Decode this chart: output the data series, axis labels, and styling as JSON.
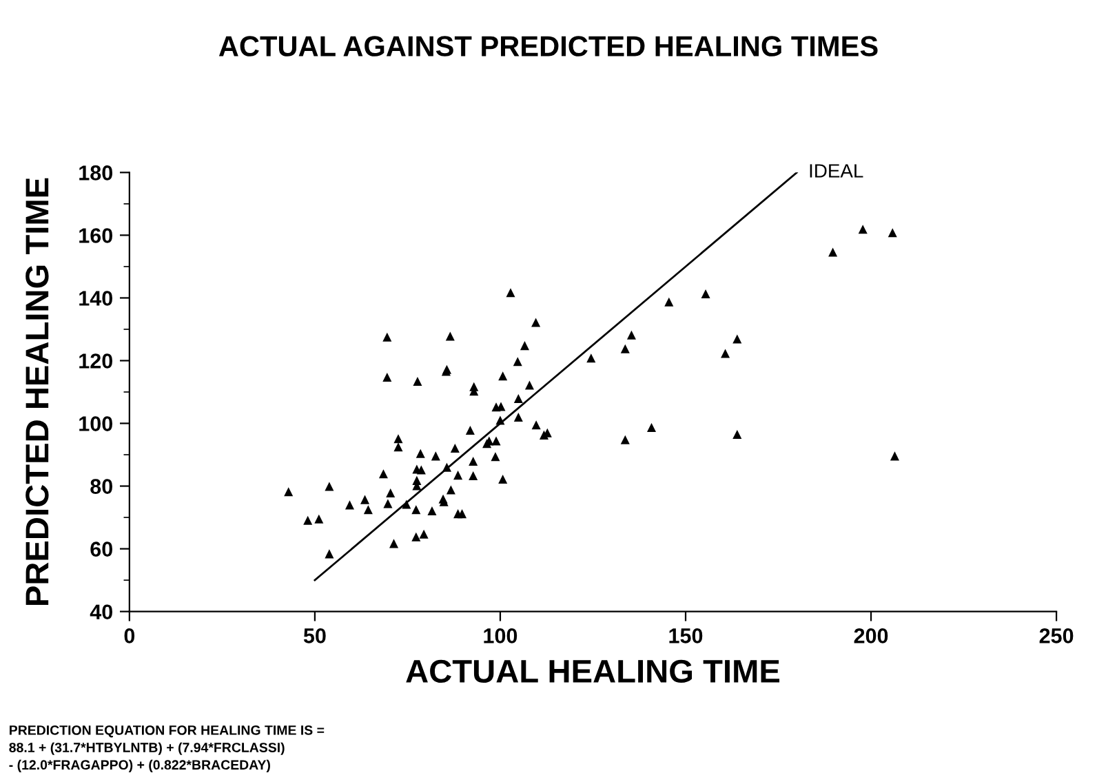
{
  "chart_data": {
    "type": "scatter",
    "title": "ACTUAL AGAINST PREDICTED HEALING TIMES",
    "xlabel": "ACTUAL HEALING TIME",
    "ylabel": "PREDICTED HEALING TIME",
    "xlim": [
      0,
      250
    ],
    "xticks": [
      0,
      50,
      100,
      150,
      200,
      250
    ],
    "ylim": [
      40,
      180
    ],
    "yticks": [
      40,
      60,
      80,
      100,
      120,
      140,
      160,
      180
    ],
    "grid": false,
    "legend": false,
    "marker": "triangle",
    "series": [
      {
        "color": "#000000",
        "x": [
          42.9,
          48.1,
          51.1,
          53.9,
          53.9,
          59.4,
          63.5,
          64.4,
          68.5,
          69.5,
          69.5,
          69.7,
          70.4,
          71.3,
          72.5,
          72.5,
          74.7,
          77.3,
          77.3,
          77.5,
          77.5,
          77.5,
          77.7,
          78.5,
          78.7,
          79.4,
          81.6,
          82.6,
          84.6,
          84.8,
          85.6,
          85.4,
          85.6,
          86.5,
          86.7,
          87.8,
          88.6,
          88.6,
          89.7,
          91.9,
          92.7,
          92.7,
          92.9,
          92.9,
          96.4,
          97.0,
          98.9,
          98.7,
          98.9,
          100.2,
          100.0,
          100.7,
          100.7,
          102.8,
          104.7,
          104.9,
          104.9,
          106.6,
          107.9,
          109.6,
          109.7,
          111.8,
          112.7,
          124.5,
          133.7,
          133.7,
          135.4,
          140.8,
          145.5,
          155.4,
          160.7,
          163.9,
          163.9,
          189.7,
          197.8,
          205.8,
          206.4
        ],
        "values": [
          78.2,
          69.1,
          69.5,
          79.9,
          58.4,
          74.0,
          75.7,
          72.5,
          83.9,
          127.5,
          114.7,
          74.4,
          77.8,
          61.7,
          95.1,
          92.5,
          74.2,
          72.5,
          63.8,
          85.4,
          81.8,
          80.1,
          113.4,
          90.4,
          85.2,
          64.7,
          72.1,
          89.6,
          75.9,
          75.0,
          86.0,
          116.6,
          117.2,
          127.8,
          78.8,
          92.1,
          83.5,
          71.2,
          71.2,
          97.8,
          87.9,
          83.3,
          111.7,
          110.3,
          93.6,
          94.4,
          94.4,
          89.4,
          105.2,
          105.4,
          101.0,
          115.1,
          82.2,
          141.7,
          119.7,
          107.9,
          102.0,
          124.8,
          112.2,
          132.2,
          99.5,
          96.3,
          97.0,
          120.8,
          123.8,
          94.8,
          128.2,
          98.7,
          138.7,
          141.3,
          122.3,
          126.9,
          96.5,
          154.6,
          161.9,
          160.8,
          89.6
        ]
      },
      {
        "type": "line",
        "color": "#000000",
        "marker": "none",
        "line_style": "solid",
        "x": [
          50,
          180
        ],
        "values": [
          50,
          180
        ]
      }
    ],
    "annotations": [
      {
        "text": "IDEAL",
        "x": 180,
        "y": 180
      },
      "PREDICTION EQUATION FOR HEALING TIME IS =\n88.1 + (31.7*HTBYLNTB) + (7.94*FRCLASSI)\n- (12.0*FRAGAPPO) + (0.822*BRACEDAY)"
    ]
  }
}
